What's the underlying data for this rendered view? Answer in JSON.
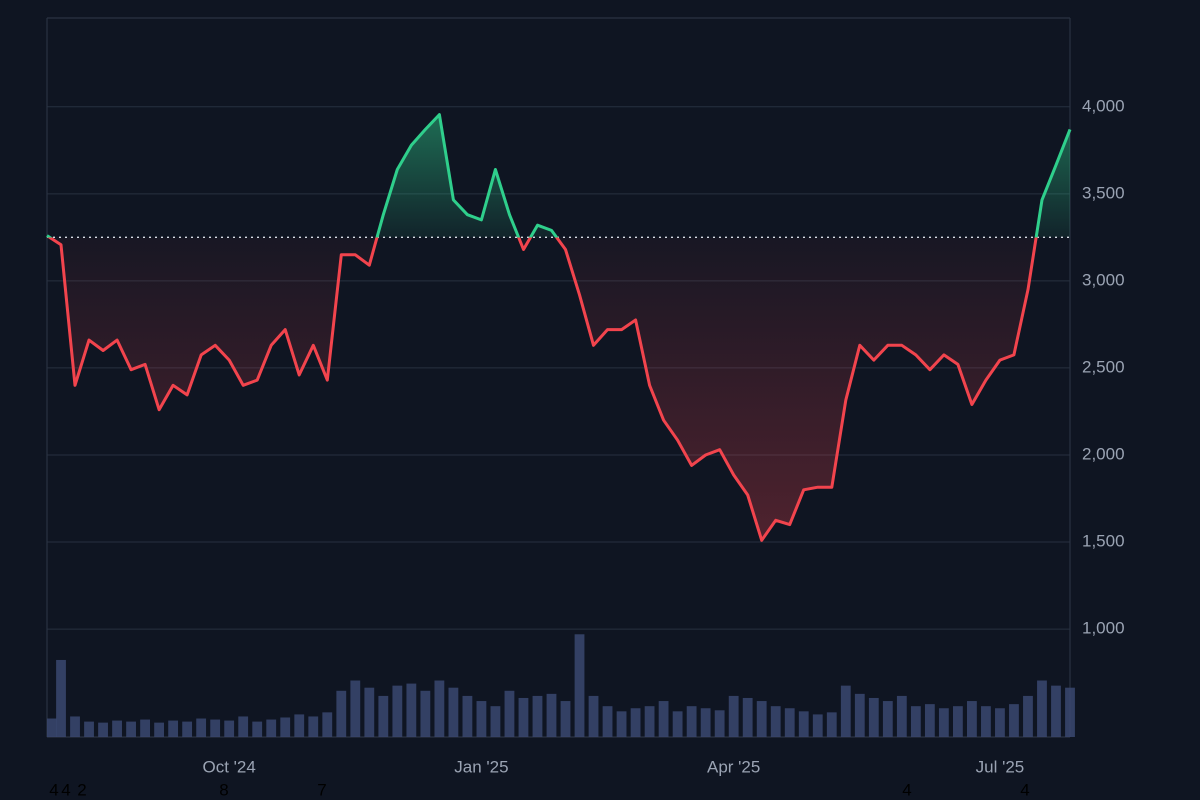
{
  "chart_data": {
    "type": "baseline-line",
    "categories": [
      null,
      null,
      null,
      null,
      null,
      null,
      null,
      null,
      null,
      null,
      null,
      null,
      null,
      "Oct '24",
      null,
      null,
      null,
      null,
      null,
      null,
      null,
      null,
      null,
      null,
      null,
      null,
      null,
      null,
      null,
      null,
      null,
      "Jan '25",
      null,
      null,
      null,
      null,
      null,
      null,
      null,
      null,
      null,
      null,
      null,
      null,
      null,
      null,
      null,
      null,
      null,
      "Apr '25",
      null,
      null,
      null,
      null,
      null,
      null,
      null,
      null,
      null,
      null,
      null,
      null,
      null,
      null,
      null,
      null,
      null,
      null,
      "Jul '25",
      null,
      null,
      null,
      null,
      null
    ],
    "values": [
      3260,
      3207,
      2400,
      2660,
      2600,
      2660,
      2490,
      2520,
      2260,
      2400,
      2345,
      2575,
      2630,
      2545,
      2400,
      2430,
      2630,
      2720,
      2460,
      2630,
      2430,
      3150,
      3150,
      3090,
      3380,
      3640,
      3780,
      3870,
      3955,
      3465,
      3380,
      3350,
      3640,
      3380,
      3180,
      3320,
      3290,
      3180,
      2920,
      2630,
      2720,
      2720,
      2775,
      2400,
      2200,
      2085,
      1940,
      2000,
      2030,
      1885,
      1770,
      1510,
      1625,
      1600,
      1800,
      1815,
      1815,
      2315,
      2630,
      2545,
      2630,
      2630,
      2575,
      2490,
      2575,
      2520,
      2290,
      2430,
      2545,
      2575,
      2950,
      3465,
      3665,
      3870
    ],
    "volume": [
      18,
      75,
      20,
      15,
      14,
      16,
      15,
      17,
      14,
      16,
      15,
      18,
      17,
      16,
      20,
      15,
      17,
      19,
      22,
      20,
      24,
      45,
      55,
      48,
      40,
      50,
      52,
      45,
      55,
      48,
      40,
      35,
      30,
      45,
      38,
      40,
      42,
      35,
      100,
      40,
      30,
      25,
      28,
      30,
      35,
      25,
      30,
      28,
      26,
      40,
      38,
      35,
      30,
      28,
      25,
      22,
      24,
      50,
      42,
      38,
      35,
      40,
      30,
      32,
      28,
      30,
      35,
      30,
      28,
      32,
      40,
      55,
      50,
      48
    ],
    "baseline": 3250,
    "up_color": "#2fcf8c",
    "down_color": "#f2444d",
    "volume_color": "#3a4870",
    "ylim": [
      380,
      4510
    ],
    "yticks": [
      {
        "value": 1000,
        "label": "1,000"
      },
      {
        "value": 1500,
        "label": "1,500"
      },
      {
        "value": 2000,
        "label": "2,000"
      },
      {
        "value": 2500,
        "label": "2,500"
      },
      {
        "value": 3000,
        "label": "3,000"
      },
      {
        "value": 3500,
        "label": "3,500"
      },
      {
        "value": 4000,
        "label": "4,000"
      }
    ],
    "y2lim": [
      0,
      700
    ],
    "grid": true,
    "footer_marks": [
      "4",
      "4",
      "2",
      "8",
      "7",
      "4",
      "4"
    ]
  }
}
